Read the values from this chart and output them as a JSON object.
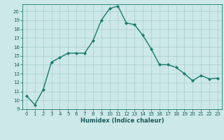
{
  "x": [
    0,
    1,
    2,
    3,
    4,
    5,
    6,
    7,
    8,
    9,
    10,
    11,
    12,
    13,
    14,
    15,
    16,
    17,
    18,
    19,
    20,
    21,
    22,
    23
  ],
  "y": [
    10.5,
    9.5,
    11.2,
    14.3,
    14.8,
    15.3,
    15.3,
    15.3,
    16.7,
    19.0,
    20.3,
    20.6,
    18.7,
    18.5,
    17.3,
    15.8,
    14.0,
    14.0,
    13.7,
    13.0,
    12.2,
    12.8,
    12.4,
    12.5
  ],
  "xlim_min": -0.5,
  "xlim_max": 23.5,
  "ylim_min": 9,
  "ylim_max": 20.8,
  "yticks": [
    9,
    10,
    11,
    12,
    13,
    14,
    15,
    16,
    17,
    18,
    19,
    20
  ],
  "xticks": [
    0,
    1,
    2,
    3,
    4,
    5,
    6,
    7,
    8,
    9,
    10,
    11,
    12,
    13,
    14,
    15,
    16,
    17,
    18,
    19,
    20,
    21,
    22,
    23
  ],
  "xlabel": "Humidex (Indice chaleur)",
  "line_color": "#1a7a6e",
  "marker_color": "#1a7a6e",
  "bg_color": "#cce8e8",
  "grid_color": "#aacece",
  "axis_color": "#1a7a6e",
  "tick_label_color": "#1a5a5a",
  "xlabel_color": "#1a5a5a",
  "tick_fontsize": 5.0,
  "xlabel_fontsize": 6.0,
  "linewidth": 1.0,
  "markersize": 2.0
}
